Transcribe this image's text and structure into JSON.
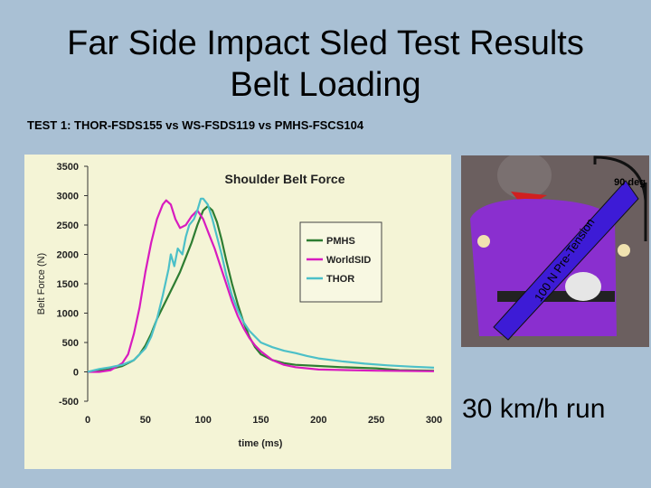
{
  "slide": {
    "title_line1": "Far Side Impact Sled Test Results",
    "title_line2": "Belt Loading",
    "subtitle": "TEST 1: THOR-FSDS155  vs  WS-FSDS119  vs  PMHS-FSCS104",
    "caption": "30 km/h run"
  },
  "photo": {
    "angle_label": "90 deg",
    "tension_label": "100 N Pre-Tension"
  },
  "colors": {
    "slide_bg": "#a9c0d4",
    "chart_bg": "#f4f4d6",
    "pmhs": "#2e7d32",
    "worldsid": "#d81bbf",
    "thor": "#4cc0c8",
    "suit": "#8a2fcf"
  },
  "chart_data": {
    "type": "line",
    "title": "Shoulder Belt Force",
    "xlabel": "time (ms)",
    "ylabel": "Belt Force (N)",
    "xlim": [
      0,
      300
    ],
    "ylim": [
      -500,
      3500
    ],
    "xticks": [
      0,
      50,
      100,
      150,
      200,
      250,
      300
    ],
    "yticks": [
      -500,
      0,
      500,
      1000,
      1500,
      2000,
      2500,
      3000,
      3500
    ],
    "grid": false,
    "legend_position": "center-right",
    "series": [
      {
        "name": "PMHS",
        "color": "#2e7d32",
        "points": [
          [
            0,
            0
          ],
          [
            10,
            20
          ],
          [
            20,
            50
          ],
          [
            30,
            100
          ],
          [
            40,
            200
          ],
          [
            45,
            300
          ],
          [
            50,
            450
          ],
          [
            55,
            650
          ],
          [
            60,
            900
          ],
          [
            65,
            1100
          ],
          [
            70,
            1300
          ],
          [
            75,
            1500
          ],
          [
            80,
            1700
          ],
          [
            85,
            1950
          ],
          [
            90,
            2200
          ],
          [
            95,
            2500
          ],
          [
            100,
            2750
          ],
          [
            104,
            2820
          ],
          [
            108,
            2750
          ],
          [
            112,
            2550
          ],
          [
            116,
            2250
          ],
          [
            120,
            1900
          ],
          [
            125,
            1500
          ],
          [
            130,
            1150
          ],
          [
            135,
            850
          ],
          [
            140,
            600
          ],
          [
            145,
            420
          ],
          [
            150,
            300
          ],
          [
            160,
            200
          ],
          [
            170,
            150
          ],
          [
            180,
            120
          ],
          [
            200,
            100
          ],
          [
            220,
            80
          ],
          [
            250,
            60
          ],
          [
            270,
            30
          ],
          [
            300,
            20
          ]
        ]
      },
      {
        "name": "WorldSID",
        "color": "#d81bbf",
        "points": [
          [
            0,
            0
          ],
          [
            10,
            0
          ],
          [
            20,
            30
          ],
          [
            30,
            150
          ],
          [
            35,
            300
          ],
          [
            40,
            650
          ],
          [
            45,
            1100
          ],
          [
            50,
            1700
          ],
          [
            55,
            2200
          ],
          [
            60,
            2600
          ],
          [
            65,
            2850
          ],
          [
            68,
            2920
          ],
          [
            72,
            2850
          ],
          [
            76,
            2600
          ],
          [
            80,
            2450
          ],
          [
            85,
            2500
          ],
          [
            90,
            2650
          ],
          [
            95,
            2750
          ],
          [
            100,
            2600
          ],
          [
            105,
            2350
          ],
          [
            110,
            2100
          ],
          [
            115,
            1800
          ],
          [
            120,
            1500
          ],
          [
            125,
            1200
          ],
          [
            130,
            950
          ],
          [
            135,
            750
          ],
          [
            140,
            580
          ],
          [
            145,
            450
          ],
          [
            150,
            350
          ],
          [
            160,
            200
          ],
          [
            170,
            120
          ],
          [
            180,
            80
          ],
          [
            200,
            40
          ],
          [
            250,
            20
          ],
          [
            300,
            10
          ]
        ]
      },
      {
        "name": "THOR",
        "color": "#4cc0c8",
        "points": [
          [
            0,
            0
          ],
          [
            10,
            50
          ],
          [
            20,
            80
          ],
          [
            30,
            120
          ],
          [
            40,
            200
          ],
          [
            50,
            400
          ],
          [
            55,
            600
          ],
          [
            60,
            900
          ],
          [
            65,
            1300
          ],
          [
            70,
            1750
          ],
          [
            72,
            2000
          ],
          [
            75,
            1800
          ],
          [
            78,
            2100
          ],
          [
            82,
            2000
          ],
          [
            85,
            2300
          ],
          [
            88,
            2500
          ],
          [
            92,
            2600
          ],
          [
            95,
            2750
          ],
          [
            98,
            2950
          ],
          [
            100,
            2950
          ],
          [
            104,
            2850
          ],
          [
            108,
            2600
          ],
          [
            112,
            2300
          ],
          [
            116,
            2000
          ],
          [
            120,
            1650
          ],
          [
            125,
            1300
          ],
          [
            130,
            1050
          ],
          [
            135,
            850
          ],
          [
            140,
            700
          ],
          [
            145,
            600
          ],
          [
            150,
            500
          ],
          [
            160,
            420
          ],
          [
            170,
            360
          ],
          [
            180,
            320
          ],
          [
            190,
            270
          ],
          [
            200,
            230
          ],
          [
            220,
            180
          ],
          [
            240,
            140
          ],
          [
            260,
            110
          ],
          [
            280,
            90
          ],
          [
            300,
            70
          ]
        ]
      }
    ]
  }
}
